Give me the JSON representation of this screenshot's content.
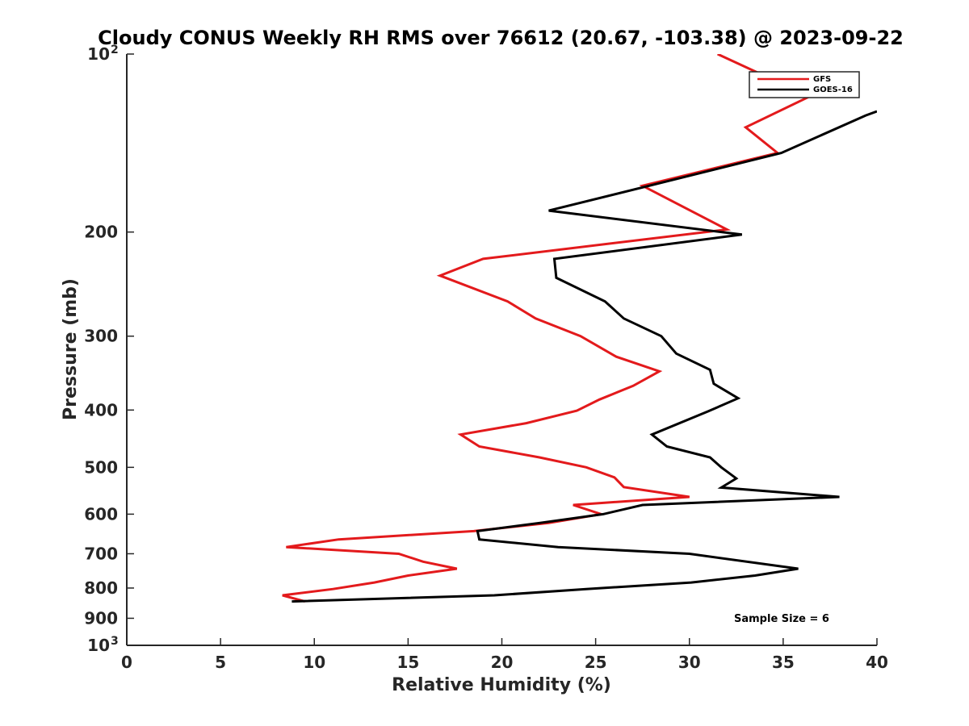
{
  "chart_data": {
    "type": "line",
    "title": "Cloudy CONUS Weekly RH RMS over 76612 (20.67, -103.38) @ 2023-09-22",
    "xlabel": "Relative Humidity (%)",
    "ylabel": "Pressure (mb)",
    "xlim": [
      0,
      40
    ],
    "ylim": [
      1000,
      100
    ],
    "yscale": "log",
    "x_ticks": [
      {
        "value": 0,
        "label": "0"
      },
      {
        "value": 5,
        "label": "5"
      },
      {
        "value": 10,
        "label": "10"
      },
      {
        "value": 15,
        "label": "15"
      },
      {
        "value": 20,
        "label": "20"
      },
      {
        "value": 25,
        "label": "25"
      },
      {
        "value": 30,
        "label": "30"
      },
      {
        "value": 35,
        "label": "35"
      },
      {
        "value": 40,
        "label": "40"
      }
    ],
    "y_ticks": [
      {
        "value": 100,
        "label": "10",
        "sup": "2"
      },
      {
        "value": 200,
        "label": "200"
      },
      {
        "value": 300,
        "label": "300"
      },
      {
        "value": 400,
        "label": "400"
      },
      {
        "value": 500,
        "label": "500"
      },
      {
        "value": 600,
        "label": "600"
      },
      {
        "value": 700,
        "label": "700"
      },
      {
        "value": 800,
        "label": "800"
      },
      {
        "value": 900,
        "label": "900"
      },
      {
        "value": 1000,
        "label": "10",
        "sup": "3"
      }
    ],
    "grid": false,
    "legend_position": "top-right",
    "annotation": "Sample Size = 6",
    "series": [
      {
        "name": "GFS",
        "color": "#e31a1c",
        "points": [
          [
            31.5,
            100
          ],
          [
            36.4,
            118
          ],
          [
            33.0,
            133
          ],
          [
            34.7,
            147
          ],
          [
            27.5,
            167
          ],
          [
            32.0,
            198
          ],
          [
            19.0,
            222
          ],
          [
            16.7,
            237
          ],
          [
            20.3,
            262
          ],
          [
            21.8,
            280
          ],
          [
            24.2,
            300
          ],
          [
            26.1,
            325
          ],
          [
            28.4,
            344
          ],
          [
            27.0,
            364
          ],
          [
            25.2,
            384
          ],
          [
            24.0,
            401
          ],
          [
            21.3,
            421
          ],
          [
            17.8,
            440
          ],
          [
            18.8,
            461
          ],
          [
            22.0,
            481
          ],
          [
            24.5,
            500
          ],
          [
            26.0,
            520
          ],
          [
            26.5,
            540
          ],
          [
            30.0,
            561
          ],
          [
            23.8,
            579
          ],
          [
            25.3,
            600
          ],
          [
            22.5,
            621
          ],
          [
            18.5,
            641
          ],
          [
            11.3,
            662
          ],
          [
            8.5,
            682
          ],
          [
            14.5,
            700
          ],
          [
            15.8,
            722
          ],
          [
            17.6,
            742
          ],
          [
            15.0,
            762
          ],
          [
            13.2,
            783
          ],
          [
            11.0,
            803
          ],
          [
            8.3,
            823
          ],
          [
            9.5,
            843
          ]
        ]
      },
      {
        "name": "GOES-16",
        "color": "#000000",
        "points": [
          [
            40.0,
            125
          ],
          [
            39.4,
            127
          ],
          [
            34.9,
            147
          ],
          [
            22.5,
            184
          ],
          [
            32.8,
            202
          ],
          [
            22.8,
            222
          ],
          [
            22.9,
            239
          ],
          [
            25.5,
            262
          ],
          [
            26.5,
            280
          ],
          [
            28.5,
            300
          ],
          [
            29.3,
            321
          ],
          [
            31.1,
            342
          ],
          [
            31.3,
            361
          ],
          [
            32.6,
            382
          ],
          [
            31.0,
            402
          ],
          [
            28.0,
            440
          ],
          [
            28.8,
            461
          ],
          [
            31.1,
            481
          ],
          [
            31.7,
            500
          ],
          [
            32.5,
            522
          ],
          [
            31.7,
            541
          ],
          [
            38.0,
            561
          ],
          [
            27.5,
            579
          ],
          [
            25.4,
            600
          ],
          [
            22.0,
            621
          ],
          [
            18.7,
            641
          ],
          [
            18.8,
            662
          ],
          [
            23.0,
            682
          ],
          [
            30.0,
            700
          ],
          [
            35.8,
            742
          ],
          [
            33.5,
            762
          ],
          [
            30.1,
            783
          ],
          [
            24.5,
            803
          ],
          [
            19.6,
            823
          ],
          [
            8.8,
            843
          ]
        ]
      }
    ]
  }
}
